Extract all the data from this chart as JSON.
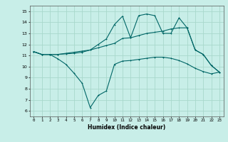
{
  "title": "",
  "xlabel": "Humidex (Indice chaleur)",
  "ylabel": "",
  "bg_color": "#c8eee8",
  "grid_color": "#a8d8cc",
  "line_color": "#006666",
  "x_ticks": [
    0,
    1,
    2,
    3,
    4,
    5,
    6,
    7,
    8,
    9,
    10,
    11,
    12,
    13,
    14,
    15,
    16,
    17,
    18,
    19,
    20,
    21,
    22,
    23
  ],
  "y_ticks": [
    6,
    7,
    8,
    9,
    10,
    11,
    12,
    13,
    14,
    15
  ],
  "xlim": [
    -0.5,
    23.5
  ],
  "ylim": [
    5.5,
    15.5
  ],
  "series": {
    "top": {
      "x": [
        0,
        1,
        2,
        3,
        4,
        5,
        6,
        7,
        8,
        9,
        10,
        11,
        12,
        13,
        14,
        15,
        16,
        17,
        18,
        19,
        20,
        21,
        22,
        23
      ],
      "y": [
        11.35,
        11.1,
        11.1,
        11.1,
        11.2,
        11.3,
        11.4,
        11.5,
        12.0,
        12.5,
        13.8,
        14.55,
        12.6,
        14.6,
        14.75,
        14.6,
        13.0,
        13.0,
        14.4,
        13.5,
        11.5,
        11.1,
        10.1,
        9.5
      ]
    },
    "mid": {
      "x": [
        0,
        1,
        2,
        3,
        4,
        5,
        6,
        7,
        8,
        9,
        10,
        11,
        12,
        13,
        14,
        15,
        16,
        17,
        18,
        19,
        20,
        21,
        22,
        23
      ],
      "y": [
        11.35,
        11.1,
        11.1,
        11.1,
        11.15,
        11.2,
        11.3,
        11.5,
        11.7,
        11.9,
        12.1,
        12.55,
        12.6,
        12.8,
        13.0,
        13.1,
        13.2,
        13.4,
        13.5,
        13.5,
        11.5,
        11.1,
        10.1,
        9.5
      ]
    },
    "bot": {
      "x": [
        0,
        1,
        2,
        3,
        4,
        5,
        6,
        7,
        8,
        9,
        10,
        11,
        12,
        13,
        14,
        15,
        16,
        17,
        18,
        19,
        20,
        21,
        22,
        23
      ],
      "y": [
        11.35,
        11.1,
        11.1,
        10.7,
        10.2,
        9.4,
        8.5,
        6.3,
        7.4,
        7.8,
        10.2,
        10.5,
        10.55,
        10.65,
        10.75,
        10.85,
        10.85,
        10.75,
        10.55,
        10.25,
        9.85,
        9.55,
        9.35,
        9.5
      ]
    }
  }
}
